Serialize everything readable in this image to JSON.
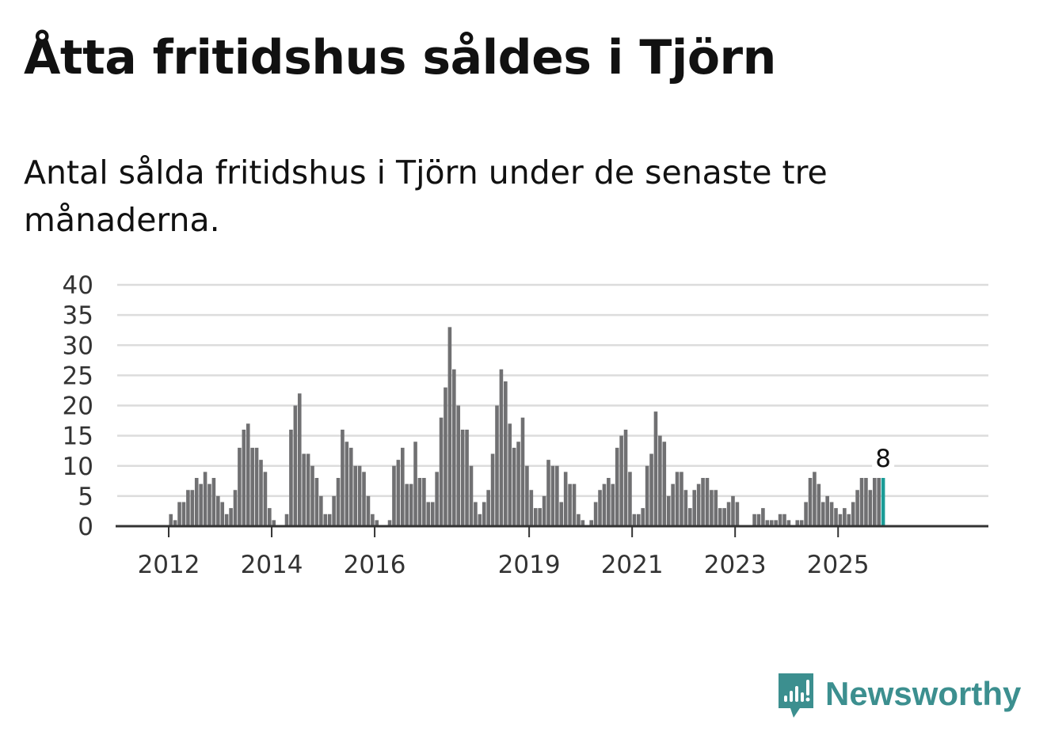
{
  "header": {
    "title": "Åtta fritidshus såldes i Tjörn",
    "subtitle": "Antal sålda fritidshus i Tjörn under de senaste tre månaderna."
  },
  "brand": {
    "name": "Newsworthy",
    "color": "#3c8f8f",
    "icon": "chart-speech-bubble-icon"
  },
  "colors": {
    "bar": "#707072",
    "highlight": "#1a9c97",
    "grid": "#dcdcdc",
    "axis": "#333333",
    "label": "#333333"
  },
  "chart_data": {
    "type": "bar",
    "title": "Åtta fritidshus såldes i Tjörn",
    "xlabel": "",
    "ylabel": "",
    "ylim": [
      0,
      40
    ],
    "y_ticks": [
      0,
      5,
      10,
      15,
      20,
      25,
      30,
      35,
      40
    ],
    "grid": true,
    "start": "2011-01",
    "x_ticks": [
      {
        "label": "2012",
        "index": 12
      },
      {
        "label": "2014",
        "index": 36
      },
      {
        "label": "2016",
        "index": 60
      },
      {
        "label": "2019",
        "index": 96
      },
      {
        "label": "2021",
        "index": 120
      },
      {
        "label": "2023",
        "index": 144
      },
      {
        "label": "2025",
        "index": 168
      }
    ],
    "values": [
      0,
      0,
      0,
      0,
      0,
      0,
      0,
      0,
      0,
      0,
      0,
      0,
      2,
      1,
      4,
      4,
      6,
      6,
      8,
      7,
      9,
      7,
      8,
      5,
      4,
      2,
      3,
      6,
      13,
      16,
      17,
      13,
      13,
      11,
      9,
      3,
      1,
      0,
      0,
      2,
      16,
      20,
      22,
      12,
      12,
      10,
      8,
      5,
      2,
      2,
      5,
      8,
      16,
      14,
      13,
      10,
      10,
      9,
      5,
      2,
      1,
      0,
      0,
      1,
      10,
      11,
      13,
      7,
      7,
      14,
      8,
      8,
      4,
      4,
      9,
      18,
      23,
      33,
      26,
      20,
      16,
      16,
      10,
      4,
      2,
      4,
      6,
      12,
      20,
      26,
      24,
      17,
      13,
      14,
      18,
      10,
      6,
      3,
      3,
      5,
      11,
      10,
      10,
      4,
      9,
      7,
      7,
      2,
      1,
      0,
      1,
      4,
      6,
      7,
      8,
      7,
      13,
      15,
      16,
      9,
      2,
      2,
      3,
      10,
      12,
      19,
      15,
      14,
      5,
      7,
      9,
      9,
      6,
      3,
      6,
      7,
      8,
      8,
      6,
      6,
      3,
      3,
      4,
      5,
      4,
      0,
      0,
      0,
      2,
      2,
      3,
      1,
      1,
      1,
      2,
      2,
      1,
      0,
      1,
      1,
      4,
      8,
      9,
      7,
      4,
      5,
      4,
      3,
      2,
      3,
      2,
      4,
      6,
      8,
      8,
      6,
      8,
      8,
      8
    ],
    "highlight_label": "8"
  }
}
